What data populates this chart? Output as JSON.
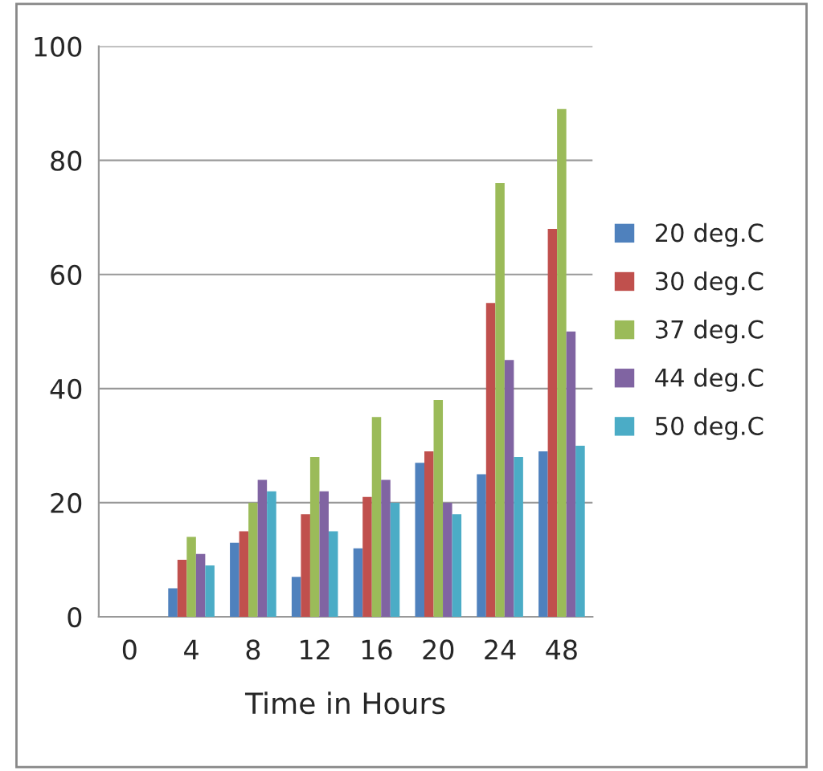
{
  "chart_data": {
    "type": "bar",
    "xlabel": "Time in Hours",
    "categories": [
      "0",
      "4",
      "8",
      "12",
      "16",
      "20",
      "24",
      "48"
    ],
    "series": [
      {
        "name": "20 deg.C",
        "color": "#4f81bd",
        "values": [
          null,
          5,
          13,
          7,
          12,
          27,
          25,
          29
        ]
      },
      {
        "name": "30 deg.C",
        "color": "#c0504d",
        "values": [
          null,
          10,
          15,
          18,
          21,
          29,
          55,
          68
        ]
      },
      {
        "name": "37 deg.C",
        "color": "#9bbb59",
        "values": [
          null,
          14,
          20,
          28,
          35,
          38,
          76,
          89
        ]
      },
      {
        "name": "44 deg.C",
        "color": "#8064a2",
        "values": [
          null,
          11,
          24,
          22,
          24,
          20,
          45,
          50
        ]
      },
      {
        "name": "50 deg.C",
        "color": "#4bacc6",
        "values": [
          null,
          9,
          22,
          15,
          20,
          18,
          28,
          30
        ]
      }
    ],
    "ylim": [
      0,
      100
    ],
    "yticks": [
      0,
      20,
      40,
      60,
      80,
      100
    ],
    "grid": "y",
    "legend": "right"
  }
}
